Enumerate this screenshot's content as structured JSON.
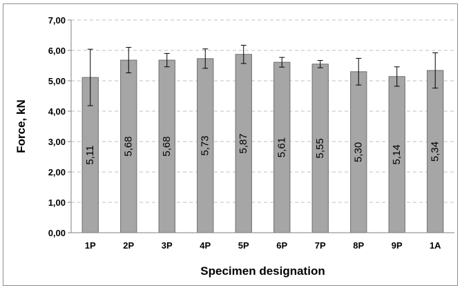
{
  "chart_data": {
    "type": "bar",
    "categories": [
      "1P",
      "2P",
      "3P",
      "4P",
      "5P",
      "6P",
      "7P",
      "8P",
      "9P",
      "1A"
    ],
    "values": [
      5.11,
      5.68,
      5.68,
      5.73,
      5.87,
      5.61,
      5.55,
      5.3,
      5.14,
      5.34
    ],
    "value_labels": [
      "5,11",
      "5,68",
      "5,68",
      "5,73",
      "5,87",
      "5,61",
      "5,55",
      "5,30",
      "5,14",
      "5,34"
    ],
    "error_bars": [
      0.93,
      0.42,
      0.22,
      0.32,
      0.3,
      0.16,
      0.12,
      0.44,
      0.32,
      0.58
    ],
    "xlabel": "Specimen designation",
    "ylabel": "Force, kN",
    "ylim": [
      0,
      7
    ],
    "yticks": [
      0,
      1,
      2,
      3,
      4,
      5,
      6,
      7
    ],
    "ytick_labels": [
      "0,00",
      "1,00",
      "2,00",
      "3,00",
      "4,00",
      "5,00",
      "6,00",
      "7,00"
    ],
    "grid": "horizontal-dashed",
    "colors": {
      "bar_fill": "#a6a6a6",
      "bar_edge": "#6e6e6e",
      "grid": "#bfbfbf"
    }
  }
}
